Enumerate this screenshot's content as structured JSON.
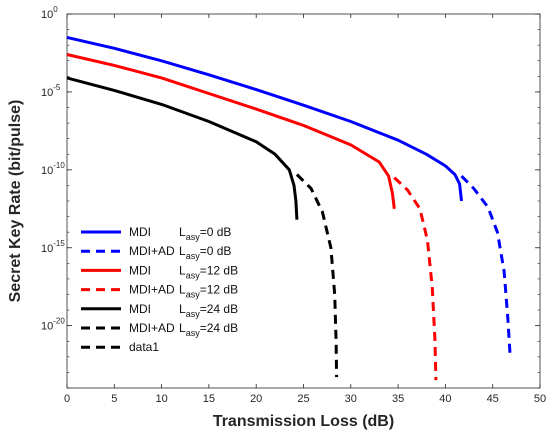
{
  "chart_data": {
    "type": "line",
    "xlabel": "Transmission Loss (dB)",
    "ylabel": "Secret Key Rate (bit/pulse)",
    "xlim": [
      0,
      50
    ],
    "ylim_log10": [
      -24,
      0
    ],
    "yscale": "log",
    "grid": false,
    "legend_position": "bottom-left",
    "x_ticks": [
      "0",
      "5",
      "10",
      "15",
      "20",
      "25",
      "30",
      "35",
      "40",
      "45",
      "50"
    ],
    "y_ticks": [
      {
        "base": "10",
        "exp": "0"
      },
      {
        "base": "10",
        "exp": "-5"
      },
      {
        "base": "10",
        "exp": "-10"
      },
      {
        "base": "10",
        "exp": "-15"
      },
      {
        "base": "10",
        "exp": "-20"
      }
    ],
    "series": [
      {
        "name": "MDI",
        "param": "asy",
        "value": "=0 dB",
        "color": "#0000ff",
        "dash": "solid",
        "x": [
          0,
          5,
          10,
          15,
          20,
          25,
          30,
          35,
          38,
          40,
          41,
          41.5,
          41.7
        ],
        "y_log10": [
          -1.5,
          -2.2,
          -3.0,
          -3.9,
          -4.85,
          -5.85,
          -6.9,
          -8.1,
          -9.0,
          -9.75,
          -10.3,
          -10.9,
          -12.0
        ]
      },
      {
        "name": "MDI+AD",
        "param": "asy",
        "value": "=0 dB",
        "color": "#0000ff",
        "dash": "dashed",
        "x": [
          41.7,
          43,
          44.5,
          45.5,
          46.2,
          46.6,
          46.85
        ],
        "y_log10": [
          -10.4,
          -11.2,
          -12.4,
          -14.0,
          -16.5,
          -19.5,
          -22.0
        ]
      },
      {
        "name": "MDI",
        "param": "asy",
        "value": "=12 dB",
        "color": "#ff0000",
        "dash": "solid",
        "x": [
          0,
          5,
          10,
          15,
          20,
          25,
          30,
          33,
          34,
          34.4,
          34.6
        ],
        "y_log10": [
          -2.6,
          -3.3,
          -4.1,
          -5.1,
          -6.1,
          -7.15,
          -8.4,
          -9.5,
          -10.4,
          -11.5,
          -12.5
        ]
      },
      {
        "name": "MDI+AD",
        "param": "asy",
        "value": "=12 dB",
        "color": "#ff0000",
        "dash": "dashed",
        "x": [
          34.6,
          36,
          37.3,
          38.1,
          38.6,
          38.9,
          39.0
        ],
        "y_log10": [
          -10.5,
          -11.3,
          -12.5,
          -14.5,
          -17.5,
          -21.0,
          -23.5
        ]
      },
      {
        "name": "MDI",
        "param": "asy",
        "value": "=24 dB",
        "color": "#000000",
        "dash": "solid",
        "x": [
          0,
          5,
          10,
          15,
          20,
          22,
          23.5,
          24,
          24.2,
          24.3
        ],
        "y_log10": [
          -4.1,
          -4.9,
          -5.8,
          -6.9,
          -8.2,
          -9.0,
          -10.0,
          -11.0,
          -12.0,
          -13.2
        ]
      },
      {
        "name": "MDI+AD",
        "param": "asy",
        "value": "=24 dB",
        "color": "#000000",
        "dash": "dashed",
        "x": [
          24.3,
          25.8,
          27,
          27.9,
          28.3,
          28.45,
          28.5
        ],
        "y_log10": [
          -10.3,
          -11.2,
          -12.7,
          -15.0,
          -18.0,
          -21.0,
          -23.3
        ]
      }
    ],
    "extra_legend_entry": {
      "label": "data1",
      "color": "#000000",
      "dash": "dashed"
    }
  }
}
